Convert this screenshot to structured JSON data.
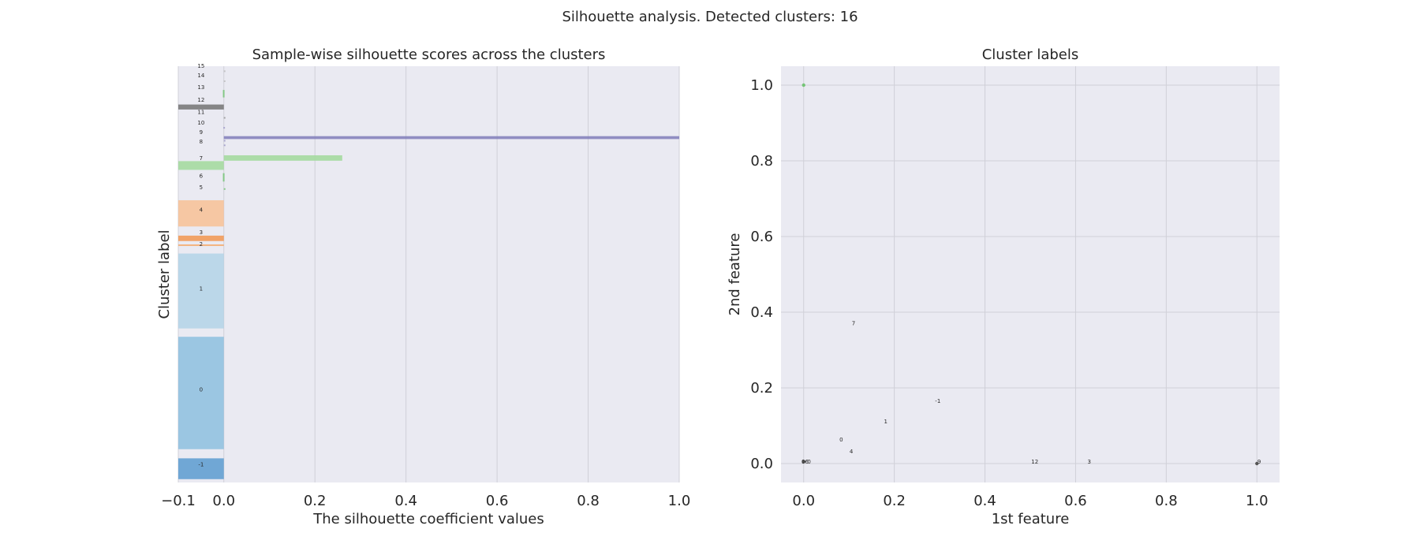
{
  "figure_title": "Silhouette analysis. Detected clusters: 16",
  "colors": {
    "background": "#eaeaf2",
    "grid": "#d0d0d8",
    "text": "#262626"
  },
  "chart_data": [
    {
      "type": "bar",
      "title": "Sample-wise silhouette scores across the clusters",
      "xlabel": "The silhouette coefficient values",
      "ylabel": "Cluster label",
      "xlim": [
        -0.1,
        1.0
      ],
      "xticks": [
        "−0.1",
        "0.0",
        "0.2",
        "0.4",
        "0.6",
        "0.8",
        "1.0"
      ],
      "xtick_values": [
        -0.1,
        0.0,
        0.2,
        0.4,
        0.6,
        0.8,
        1.0
      ],
      "grid": true,
      "ylim": [
        0,
        100
      ],
      "clusters": [
        {
          "label": "-1",
          "y0": 0.8,
          "y1": 5.8,
          "score": -0.1,
          "color": "#5b9bd0"
        },
        {
          "label": "0",
          "y0": 8.0,
          "y1": 35.0,
          "score": -0.1,
          "color": "#8dbfdf"
        },
        {
          "label": "1",
          "y0": 37.0,
          "y1": 55.0,
          "score": -0.1,
          "color": "#b3d3e8"
        },
        {
          "label": "2",
          "y0": 57.0,
          "y1": 57.0,
          "score": -0.1,
          "color": "#f5a96b"
        },
        {
          "label": "3",
          "y0": 58.0,
          "y1": 59.3,
          "score": -0.1,
          "color": "#f29650"
        },
        {
          "label": "4",
          "y0": 61.5,
          "y1": 67.8,
          "score": -0.1,
          "color": "#f8c195"
        },
        {
          "label": "5",
          "y0": 70.5,
          "y1": 70.5,
          "score": 0.0,
          "color": "#74c476"
        },
        {
          "label": "6",
          "y0": 72.3,
          "y1": 74.3,
          "score": -0.002,
          "color": "#74c476"
        },
        {
          "label": "7",
          "y0": 75.1,
          "y1": 77.2,
          "score": -0.1,
          "color": "#a1d99b"
        },
        {
          "label": "7",
          "y0": 77.3,
          "y1": 78.6,
          "score": 0.26,
          "color": "#a1d99b"
        },
        {
          "label": "8",
          "y0": 81.0,
          "y1": 81.0,
          "score": 0.0,
          "color": "#9e9ac8"
        },
        {
          "label": "9",
          "y0": 82.1,
          "y1": 82.1,
          "score": 0.0,
          "color": "#9e9ac8"
        },
        {
          "label": "9",
          "y0": 82.5,
          "y1": 83.2,
          "score": 1.0,
          "color": "#807dba"
        },
        {
          "label": "10",
          "y0": 85.2,
          "y1": 85.2,
          "score": -0.001,
          "color": "#9e9ac8"
        },
        {
          "label": "11",
          "y0": 87.6,
          "y1": 87.6,
          "score": 0.0,
          "color": "#969696"
        },
        {
          "label": "12",
          "y0": 89.6,
          "y1": 90.8,
          "score": -0.1,
          "color": "#737373"
        },
        {
          "label": "13",
          "y0": 92.5,
          "y1": 94.3,
          "score": -0.002,
          "color": "#74c476"
        },
        {
          "label": "14",
          "y0": 96.4,
          "y1": 96.4,
          "score": 0.0,
          "color": "#bdbdbd"
        },
        {
          "label": "15",
          "y0": 98.8,
          "y1": 98.8,
          "score": 0.0,
          "color": "#bdbdbd"
        }
      ],
      "cluster_text_labels": [
        {
          "text": "-1",
          "y": 4.3
        },
        {
          "text": "0",
          "y": 22.3
        },
        {
          "text": "1",
          "y": 46.5
        },
        {
          "text": "2",
          "y": 57.2
        },
        {
          "text": "3",
          "y": 60.0
        },
        {
          "text": "4",
          "y": 65.4
        },
        {
          "text": "5",
          "y": 70.8
        },
        {
          "text": "6",
          "y": 73.6
        },
        {
          "text": "7",
          "y": 77.8
        },
        {
          "text": "8",
          "y": 81.8
        },
        {
          "text": "9",
          "y": 84.1
        },
        {
          "text": "10",
          "y": 86.4
        },
        {
          "text": "11",
          "y": 88.9
        },
        {
          "text": "12",
          "y": 91.9
        },
        {
          "text": "13",
          "y": 94.9
        },
        {
          "text": "14",
          "y": 97.7
        },
        {
          "text": "15",
          "y": 100.0
        }
      ]
    },
    {
      "type": "scatter",
      "title": "Cluster labels",
      "xlabel": "1st feature",
      "ylabel": "2nd feature",
      "xlim": [
        -0.05,
        1.05
      ],
      "ylim": [
        -0.05,
        1.05
      ],
      "xticks": [
        "0.0",
        "0.2",
        "0.4",
        "0.6",
        "0.8",
        "1.0"
      ],
      "xtick_values": [
        0.0,
        0.2,
        0.4,
        0.6,
        0.8,
        1.0
      ],
      "yticks": [
        "0.0",
        "0.2",
        "0.4",
        "0.6",
        "0.8",
        "1.0"
      ],
      "ytick_values": [
        0.0,
        0.2,
        0.4,
        0.6,
        0.8,
        1.0
      ],
      "grid": true,
      "points": [
        {
          "x": 0.0,
          "y": 1.0,
          "color": "#74c476"
        },
        {
          "x": 0.0,
          "y": 0.005,
          "color": "#555555"
        },
        {
          "x": 1.0,
          "y": 0.0,
          "color": "#555555"
        }
      ],
      "annotations": [
        {
          "text": "7",
          "x": 0.11,
          "y": 0.37
        },
        {
          "text": "-1",
          "x": 0.296,
          "y": 0.165
        },
        {
          "text": "1",
          "x": 0.181,
          "y": 0.11
        },
        {
          "text": "0",
          "x": 0.083,
          "y": 0.063
        },
        {
          "text": "4",
          "x": 0.105,
          "y": 0.031
        },
        {
          "text": "12",
          "x": 0.51,
          "y": 0.004
        },
        {
          "text": "3",
          "x": 0.63,
          "y": 0.004
        },
        {
          "text": "9",
          "x": 1.005,
          "y": 0.004
        },
        {
          "text": "06",
          "x": 0.003,
          "y": 0.004
        },
        {
          "text": "0",
          "x": 0.012,
          "y": 0.004
        }
      ]
    }
  ]
}
